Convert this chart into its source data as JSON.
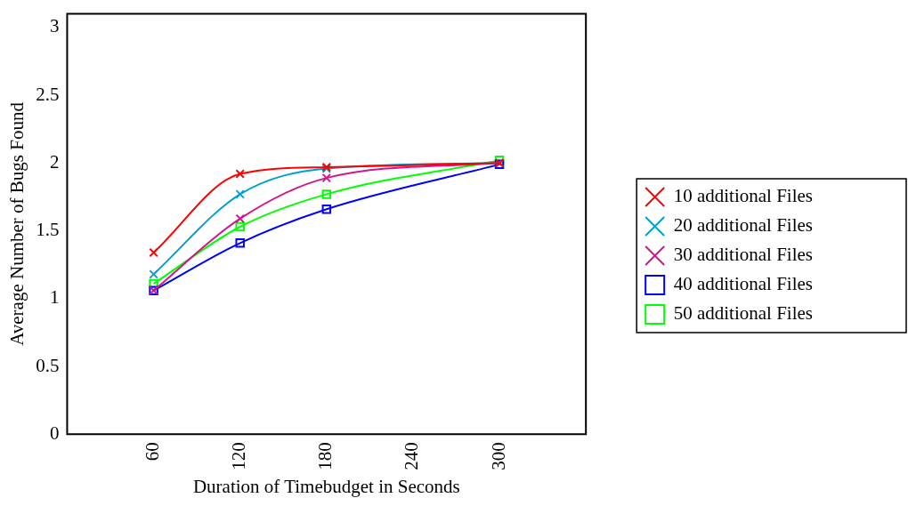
{
  "chart_data": {
    "type": "line",
    "xlabel": "Duration of Timebudget in Seconds",
    "ylabel": "Average Number of Bugs Found",
    "x": [
      60,
      120,
      180,
      300
    ],
    "series": [
      {
        "name": "10 additional Files",
        "color": "#ff0000",
        "marker": "cross",
        "values": [
          1.34,
          1.92,
          1.97,
          2.0
        ]
      },
      {
        "name": "20 additional Files",
        "color": "#00a0d2",
        "marker": "cross",
        "values": [
          1.18,
          1.77,
          1.96,
          2.0
        ]
      },
      {
        "name": "30 additional Files",
        "color": "#d4148c",
        "marker": "cross",
        "values": [
          1.06,
          1.59,
          1.89,
          2.0
        ]
      },
      {
        "name": "40 additional Files",
        "color": "#0000ff",
        "marker": "square",
        "values": [
          1.06,
          1.41,
          1.66,
          1.99
        ]
      },
      {
        "name": "50 additional Files",
        "color": "#00ff00",
        "marker": "square",
        "values": [
          1.11,
          1.53,
          1.77,
          2.02
        ]
      }
    ],
    "xlim": [
      0,
      360
    ],
    "xticks": [
      60,
      120,
      180,
      240,
      300
    ],
    "ylim": [
      0,
      3.1
    ],
    "yticks": [
      0,
      0.5,
      1,
      1.5,
      2,
      2.5,
      3
    ],
    "legend": "right"
  }
}
